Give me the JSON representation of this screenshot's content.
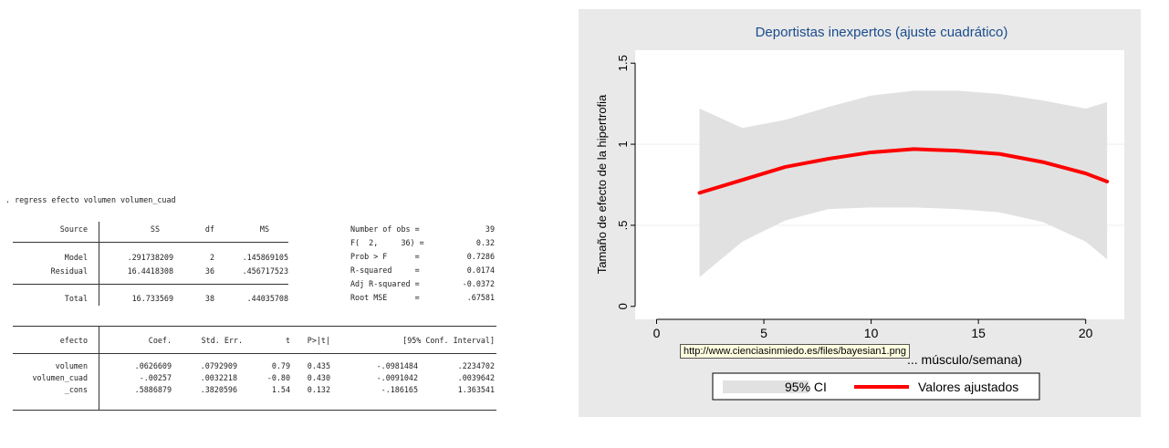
{
  "stata": {
    "command": ". regress efecto volumen volumen_cuad",
    "anova_header": [
      "Source",
      "SS",
      "df",
      "MS"
    ],
    "anova_rows": [
      [
        "Model",
        ".291738209",
        "2",
        ".145869105"
      ],
      [
        "Residual",
        "16.4418308",
        "36",
        ".456717523"
      ]
    ],
    "anova_total": [
      "Total",
      "16.733569",
      "38",
      ".44035708"
    ],
    "stats_labels": [
      "Number of obs =",
      "F(  2,     36) =",
      "Prob > F      =",
      "R-squared     =",
      "Adj R-squared =",
      "Root MSE      ="
    ],
    "stats_values": [
      "39",
      "0.32",
      "0.7286",
      "0.0174",
      "-0.0372",
      ".67581"
    ],
    "coef_header": [
      "efecto",
      "Coef.",
      "Std. Err.",
      "t",
      "P>|t|",
      "[95% Conf. Interval]"
    ],
    "coef_rows": [
      [
        "volumen",
        ".0626609",
        ".0792909",
        "0.79",
        "0.435",
        "-.0981484",
        ".2234702"
      ],
      [
        "volumen_cuad",
        "-.00257",
        ".0032218",
        "-0.80",
        "0.430",
        "-.0091042",
        ".0039642"
      ],
      [
        "_cons",
        ".5886879",
        ".3820596",
        "1.54",
        "0.132",
        "-.186165",
        "1.363541"
      ]
    ]
  },
  "chart_data": {
    "type": "line",
    "title": "Deportistas inexpertos (ajuste cuadrático)",
    "ylabel": "Tamaño de efecto de la hipertrofia",
    "xlabel": "... músculo/semana)",
    "xlim": [
      0,
      21
    ],
    "ylim": [
      0,
      1.5
    ],
    "xticks": [
      0,
      5,
      10,
      15,
      20
    ],
    "yticks": [
      0,
      0.5,
      1,
      1.5
    ],
    "ytick_labels": [
      "0",
      ".5",
      "1",
      "1.5"
    ],
    "legend_position": "bottom",
    "series": [
      {
        "name": "95% CI",
        "kind": "band",
        "x": [
          2,
          4,
          6,
          8,
          10,
          12,
          14,
          16,
          18,
          20,
          21
        ],
        "lower": [
          0.18,
          0.4,
          0.53,
          0.6,
          0.61,
          0.61,
          0.6,
          0.58,
          0.52,
          0.4,
          0.29
        ],
        "upper": [
          1.22,
          1.1,
          1.15,
          1.23,
          1.3,
          1.33,
          1.33,
          1.31,
          1.27,
          1.22,
          1.26
        ]
      },
      {
        "name": "Valores ajustados",
        "kind": "line",
        "x": [
          2,
          4,
          6,
          8,
          10,
          12,
          14,
          16,
          18,
          20,
          21
        ],
        "y": [
          0.7,
          0.78,
          0.86,
          0.91,
          0.95,
          0.97,
          0.96,
          0.94,
          0.89,
          0.82,
          0.77
        ]
      }
    ],
    "colors": {
      "band": "#e1e1e1",
      "fit": "#ff0000",
      "outer_bg": "#e9e9e9",
      "plot_bg": "#ffffff",
      "title": "#1a4c8c"
    }
  },
  "tooltip": "http://www.cienciasinmiedo.es/files/bayesian1.png"
}
